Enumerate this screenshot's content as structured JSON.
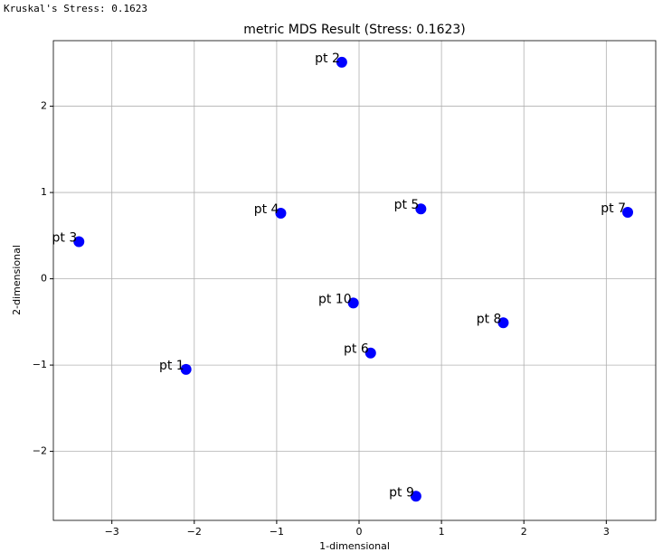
{
  "header": "Kruskal's Stress: 0.1623",
  "chart_data": {
    "type": "scatter",
    "title": "metric MDS Result (Stress: 0.1623)",
    "x_label": "1-dimensional",
    "y_label": "2-dimensional",
    "point_labels": [
      "pt 1",
      "pt 2",
      "pt 3",
      "pt 4",
      "pt 5",
      "pt 6",
      "pt 7",
      "pt 8",
      "pt 9",
      "pt 10"
    ],
    "x": [
      -2.1,
      -0.21,
      -3.4,
      -0.95,
      0.75,
      0.14,
      3.26,
      1.75,
      0.69,
      -0.07
    ],
    "y": [
      -1.05,
      2.51,
      0.43,
      0.76,
      0.81,
      -0.86,
      0.77,
      -0.51,
      -2.52,
      -0.28
    ],
    "color": "#0000ff",
    "xlim": [
      -3.71,
      3.6
    ],
    "ylim": [
      -2.8,
      2.76
    ],
    "xticks": [
      {
        "value": -3,
        "label": "−3"
      },
      {
        "value": -2,
        "label": "−2"
      },
      {
        "value": -1,
        "label": "−1"
      },
      0,
      1,
      2,
      3
    ],
    "yticks": [
      {
        "value": -2,
        "label": "−2"
      },
      {
        "value": -1,
        "label": "−1"
      },
      0,
      1,
      2
    ],
    "grid": true
  }
}
